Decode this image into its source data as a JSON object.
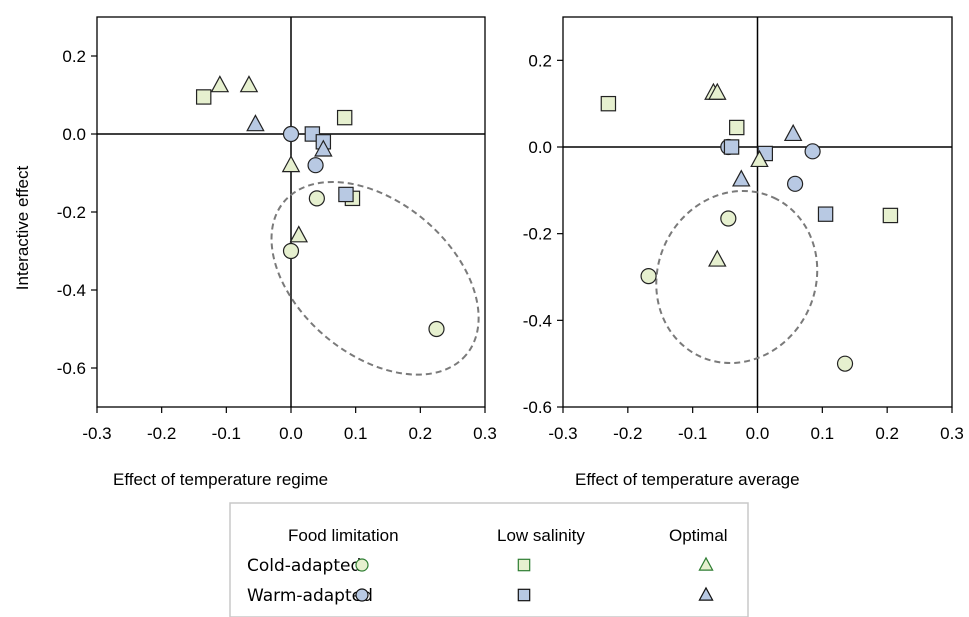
{
  "chart_data": [
    {
      "type": "scatter",
      "panel": "left",
      "xlabel": "Effect of temperature regime",
      "ylabel": "Interactive effect",
      "xlim": [
        -0.3,
        0.3
      ],
      "ylim": [
        -0.7,
        0.3
      ],
      "xticks": [
        "-0.3",
        "-0.2",
        "-0.1",
        "0.0",
        "0.1",
        "0.2",
        "0.3"
      ],
      "yticks": [
        "0.2",
        "0.0",
        "-0.2",
        "-0.4",
        "-0.6"
      ],
      "ytick_values": [
        0.2,
        0.0,
        -0.2,
        -0.4,
        -0.6
      ],
      "zero_lines": true,
      "ellipse": {
        "center": [
          0.13,
          -0.37
        ],
        "rx": 0.184,
        "ry": 0.196,
        "rotation_deg": 40
      },
      "series": [
        {
          "name": "Cold-adapted Food limitation",
          "marker": "circle",
          "fill": "#e6f0cf",
          "points": [
            [
              0.225,
              -0.5
            ],
            [
              0.04,
              -0.165
            ],
            [
              0.0,
              -0.3
            ]
          ]
        },
        {
          "name": "Warm-adapted Food limitation",
          "marker": "circle",
          "fill": "#b8c9e3",
          "points": [
            [
              0.0,
              0.0
            ],
            [
              0.038,
              -0.08
            ]
          ]
        },
        {
          "name": "Cold-adapted Low salinity",
          "marker": "square",
          "fill": "#e6f0cf",
          "points": [
            [
              -0.135,
              0.095
            ],
            [
              0.083,
              0.042
            ],
            [
              0.095,
              -0.165
            ]
          ]
        },
        {
          "name": "Warm-adapted Low salinity",
          "marker": "square",
          "fill": "#b8c9e3",
          "points": [
            [
              0.033,
              0.0
            ],
            [
              0.05,
              -0.02
            ],
            [
              0.085,
              -0.155
            ]
          ]
        },
        {
          "name": "Cold-adapted Optimal",
          "marker": "triangle",
          "fill": "#e6f0cf",
          "points": [
            [
              -0.11,
              0.125
            ],
            [
              -0.065,
              0.125
            ],
            [
              0.0,
              -0.08
            ],
            [
              0.012,
              -0.26
            ]
          ]
        },
        {
          "name": "Warm-adapted Optimal",
          "marker": "triangle",
          "fill": "#b8c9e3",
          "points": [
            [
              -0.055,
              0.025
            ],
            [
              0.05,
              -0.04
            ]
          ]
        }
      ]
    },
    {
      "type": "scatter",
      "panel": "right",
      "xlabel": "Effect of temperature average",
      "ylabel": "",
      "xlim": [
        -0.3,
        0.3
      ],
      "ylim": [
        -0.6,
        0.3
      ],
      "xticks": [
        "-0.3",
        "-0.2",
        "-0.1",
        "0.0",
        "0.1",
        "0.2",
        "0.3"
      ],
      "yticks": [
        "0.2",
        "0.0",
        "-0.2",
        "-0.4",
        "-0.6"
      ],
      "ytick_values": [
        0.2,
        0.0,
        -0.2,
        -0.4,
        -0.6
      ],
      "zero_lines": true,
      "ellipse": {
        "center": [
          -0.032,
          -0.3
        ],
        "rx": 0.135,
        "ry": 0.182,
        "rotation_deg": -65
      },
      "series": [
        {
          "name": "Cold-adapted Food limitation",
          "marker": "circle",
          "fill": "#e6f0cf",
          "points": [
            [
              0.135,
              -0.5
            ],
            [
              -0.045,
              -0.165
            ],
            [
              -0.168,
              -0.298
            ]
          ]
        },
        {
          "name": "Warm-adapted Food limitation",
          "marker": "circle",
          "fill": "#b8c9e3",
          "points": [
            [
              -0.045,
              0.0
            ],
            [
              0.085,
              -0.01
            ],
            [
              0.058,
              -0.085
            ]
          ]
        },
        {
          "name": "Cold-adapted Low salinity",
          "marker": "square",
          "fill": "#e6f0cf",
          "points": [
            [
              -0.23,
              0.1
            ],
            [
              -0.032,
              0.045
            ],
            [
              0.205,
              -0.158
            ]
          ]
        },
        {
          "name": "Warm-adapted Low salinity",
          "marker": "square",
          "fill": "#b8c9e3",
          "points": [
            [
              -0.04,
              0.0
            ],
            [
              0.012,
              -0.015
            ],
            [
              0.105,
              -0.155
            ]
          ]
        },
        {
          "name": "Cold-adapted Optimal",
          "marker": "triangle",
          "fill": "#e6f0cf",
          "points": [
            [
              -0.068,
              0.125
            ],
            [
              -0.062,
              0.125
            ],
            [
              -0.062,
              -0.26
            ],
            [
              0.003,
              -0.03
            ]
          ]
        },
        {
          "name": "Warm-adapted Optimal",
          "marker": "triangle",
          "fill": "#b8c9e3",
          "points": [
            [
              0.055,
              0.03
            ],
            [
              -0.025,
              -0.075
            ]
          ]
        }
      ]
    }
  ],
  "legend": {
    "columns": [
      "Food limitation",
      "Low salinity",
      "Optimal"
    ],
    "rows": [
      {
        "label": "Cold-adapted",
        "fill": "#e6f0cf",
        "stroke": "#2e7d32"
      },
      {
        "label": "Warm-adapted",
        "fill": "#b8c9e3",
        "stroke": "#111111"
      }
    ],
    "markers": [
      "circle",
      "square",
      "triangle"
    ]
  },
  "colors": {
    "ellipse": "#7a7a7a",
    "axis": "#000000",
    "legend_border": "#c8c8c8"
  }
}
